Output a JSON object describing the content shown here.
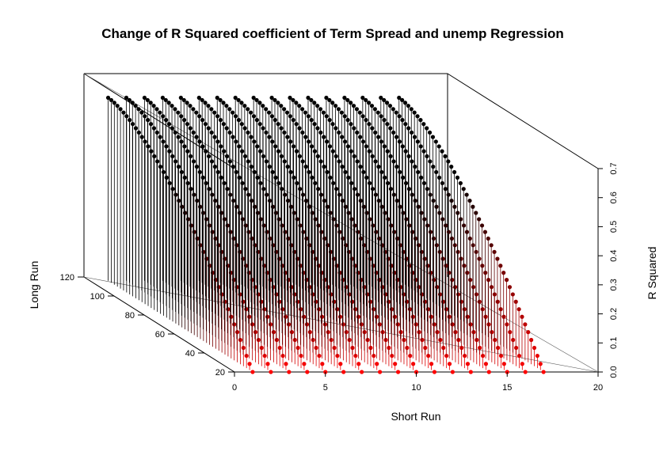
{
  "chart_data": {
    "type": "scatter3d",
    "title": "Change of R Squared coefficient of Term Spread and unemp Regression",
    "xlabel": "Short Run",
    "ylabel": "Long Run",
    "zlabel": "R Squared",
    "xlim": [
      0,
      20
    ],
    "ylim": [
      20,
      120
    ],
    "zlim": [
      0,
      0.7
    ],
    "x_ticks": [
      "0",
      "5",
      "10",
      "15",
      "20"
    ],
    "y_ticks": [
      "20",
      "40",
      "60",
      "80",
      "100",
      "120"
    ],
    "z_ticks": [
      "0.0",
      "0.1",
      "0.2",
      "0.3",
      "0.4",
      "0.5",
      "0.6",
      "0.7"
    ],
    "color_low": "#ff0000",
    "color_high": "#000000",
    "drop_lines": true,
    "series": [
      {
        "short_run": 1,
        "long_run": [
          20,
          116
        ],
        "r_squared": [
          0.0,
          0.63
        ]
      },
      {
        "short_run": 2,
        "long_run": [
          20,
          116
        ],
        "r_squared": [
          0.0,
          0.63
        ]
      },
      {
        "short_run": 3,
        "long_run": [
          20,
          116
        ],
        "r_squared": [
          0.0,
          0.63
        ]
      },
      {
        "short_run": 4,
        "long_run": [
          20,
          116
        ],
        "r_squared": [
          0.0,
          0.63
        ]
      },
      {
        "short_run": 5,
        "long_run": [
          20,
          116
        ],
        "r_squared": [
          0.0,
          0.63
        ]
      },
      {
        "short_run": 6,
        "long_run": [
          20,
          116
        ],
        "r_squared": [
          0.0,
          0.63
        ]
      },
      {
        "short_run": 7,
        "long_run": [
          20,
          116
        ],
        "r_squared": [
          0.0,
          0.63
        ]
      },
      {
        "short_run": 8,
        "long_run": [
          20,
          116
        ],
        "r_squared": [
          0.0,
          0.63
        ]
      },
      {
        "short_run": 9,
        "long_run": [
          20,
          116
        ],
        "r_squared": [
          0.0,
          0.63
        ]
      },
      {
        "short_run": 10,
        "long_run": [
          20,
          116
        ],
        "r_squared": [
          0.0,
          0.63
        ]
      },
      {
        "short_run": 11,
        "long_run": [
          20,
          116
        ],
        "r_squared": [
          0.0,
          0.63
        ]
      },
      {
        "short_run": 12,
        "long_run": [
          20,
          116
        ],
        "r_squared": [
          0.0,
          0.63
        ]
      },
      {
        "short_run": 13,
        "long_run": [
          20,
          116
        ],
        "r_squared": [
          0.0,
          0.63
        ]
      },
      {
        "short_run": 14,
        "long_run": [
          20,
          116
        ],
        "r_squared": [
          0.0,
          0.63
        ]
      },
      {
        "short_run": 15,
        "long_run": [
          20,
          116
        ],
        "r_squared": [
          0.0,
          0.63
        ]
      },
      {
        "short_run": 16,
        "long_run": [
          20,
          116
        ],
        "r_squared": [
          0.0,
          0.63
        ]
      },
      {
        "short_run": 17,
        "long_run": [
          20,
          116
        ],
        "r_squared": [
          0.0,
          0.63
        ]
      }
    ]
  }
}
